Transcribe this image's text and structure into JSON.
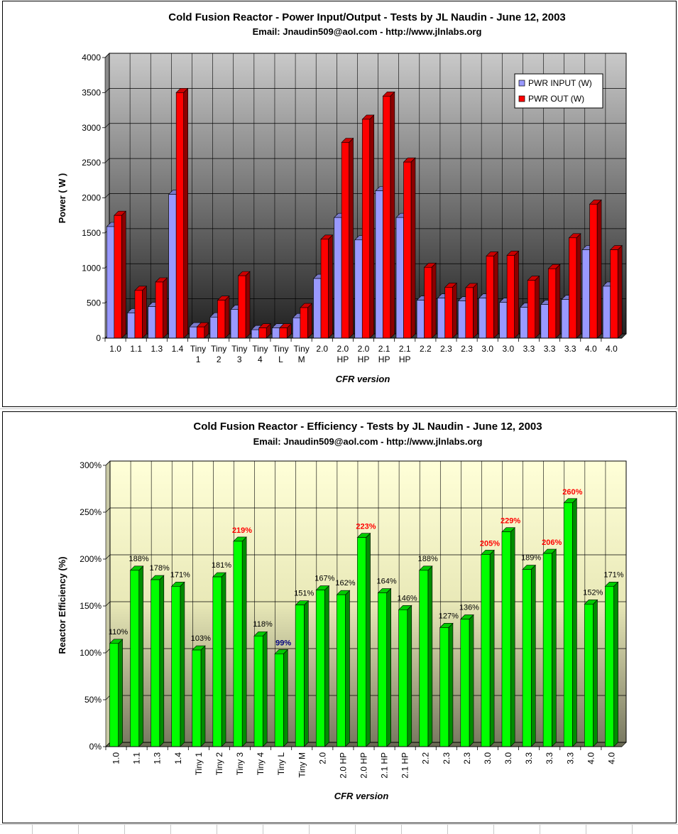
{
  "chart_data": [
    {
      "type": "bar",
      "title": "Cold Fusion Reactor - Power Input/Output - Tests by JL Naudin - June 12, 2003",
      "subtitle": "Email: Jnaudin509@aol.com - http://www.jlnlabs.org",
      "xlabel": "CFR version",
      "ylabel": "Power ( W )",
      "ylim": [
        0,
        4000
      ],
      "yticks": [
        "0",
        "500",
        "1000",
        "1500",
        "2000",
        "2500",
        "3000",
        "3500",
        "4000"
      ],
      "grid": true,
      "legend_position": "top-right",
      "categories": [
        "1.0",
        "1.1",
        "1.3",
        "1.4",
        "Tiny\n1",
        "Tiny\n2",
        "Tiny\n3",
        "Tiny\n4",
        "Tiny\nL",
        "Tiny\nM",
        "2.0",
        "2.0\nHP",
        "2.0\nHP",
        "2.1\nHP",
        "2.1\nHP",
        "2.2",
        "2.3",
        "2.3",
        "3.0",
        "3.0",
        "3.3",
        "3.3",
        "3.3",
        "4.0",
        "4.0"
      ],
      "series": [
        {
          "name": "PWR INPUT (W)",
          "color": "#9999ff",
          "values": [
            1590,
            360,
            450,
            2050,
            160,
            300,
            410,
            120,
            145,
            290,
            850,
            1720,
            1400,
            2100,
            1720,
            540,
            570,
            530,
            570,
            510,
            440,
            480,
            550,
            1260,
            740
          ]
        },
        {
          "name": "PWR OUT (W)",
          "color": "#ff0000",
          "values": [
            1750,
            680,
            800,
            3500,
            160,
            540,
            890,
            145,
            145,
            435,
            1410,
            2790,
            3120,
            3450,
            2510,
            1010,
            725,
            720,
            1170,
            1180,
            825,
            990,
            1430,
            1910,
            1260
          ]
        }
      ]
    },
    {
      "type": "bar",
      "title": "Cold Fusion Reactor - Efficiency - Tests by JL Naudin - June 12, 2003",
      "subtitle": "Email: Jnaudin509@aol.com - http://www.jlnlabs.org",
      "xlabel": "CFR version",
      "ylabel": "Reactor Efficiency (%)",
      "ylim": [
        0,
        300
      ],
      "yticks": [
        "0%",
        "50%",
        "100%",
        "150%",
        "200%",
        "250%",
        "300%"
      ],
      "grid": true,
      "categories": [
        "1.0",
        "1.1",
        "1.3",
        "1.4",
        "Tiny 1",
        "Tiny 2",
        "Tiny 3",
        "Tiny 4",
        "Tiny L",
        "Tiny M",
        "2.0",
        "2.0 HP",
        "2.0 HP",
        "2.1 HP",
        "2.1 HP",
        "2.2",
        "2.3",
        "2.3",
        "3.0",
        "3.0",
        "3.3",
        "3.3",
        "3.3",
        "4.0",
        "4.0"
      ],
      "series": [
        {
          "color": "#00ff00",
          "values": [
            110,
            188,
            178,
            171,
            103,
            181,
            219,
            118,
            99,
            151,
            167,
            162,
            223,
            164,
            146,
            188,
            127,
            136,
            205,
            229,
            189,
            206,
            260,
            152,
            171
          ]
        }
      ],
      "data_labels": [
        "110%",
        "188%",
        "178%",
        "171%",
        "103%",
        "181%",
        "219%",
        "118%",
        "99%",
        "151%",
        "167%",
        "162%",
        "223%",
        "164%",
        "146%",
        "188%",
        "127%",
        "136%",
        "205%",
        "229%",
        "189%",
        "206%",
        "260%",
        "152%",
        "171%"
      ],
      "label_colors": [
        "#000000",
        "#000000",
        "#000000",
        "#000000",
        "#000000",
        "#000000",
        "#ff0000",
        "#000000",
        "#000080",
        "#000000",
        "#000000",
        "#000000",
        "#ff0000",
        "#000000",
        "#000000",
        "#000000",
        "#000000",
        "#000000",
        "#ff0000",
        "#ff0000",
        "#000000",
        "#ff0000",
        "#ff0000",
        "#000000",
        "#000000"
      ]
    }
  ]
}
